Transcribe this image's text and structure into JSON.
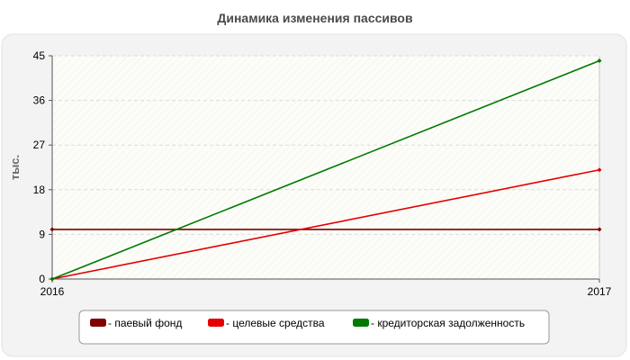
{
  "chart_data": {
    "type": "line",
    "title": "Динамика изменения пассивов",
    "xlabel": "",
    "ylabel": "тыс.",
    "x": [
      "2016",
      "2017"
    ],
    "ylim": [
      0,
      45
    ],
    "yticks": [
      "0",
      "9",
      "18",
      "27",
      "36",
      "45"
    ],
    "grid": true,
    "legend_position": "bottom",
    "series": [
      {
        "name": "- паевый фонд",
        "values": [
          10,
          10
        ],
        "color": "#800000"
      },
      {
        "name": "- целевые средства",
        "values": [
          0,
          22
        ],
        "color": "#e30000"
      },
      {
        "name": "- кредиторская задолженность",
        "values": [
          0,
          44
        ],
        "color": "#007a00"
      }
    ]
  },
  "colors": {
    "frame_bg": "#f3f3f3",
    "plot_bg": "#fcfdf9",
    "grid": "#dcdcdc",
    "axis": "#555555"
  }
}
